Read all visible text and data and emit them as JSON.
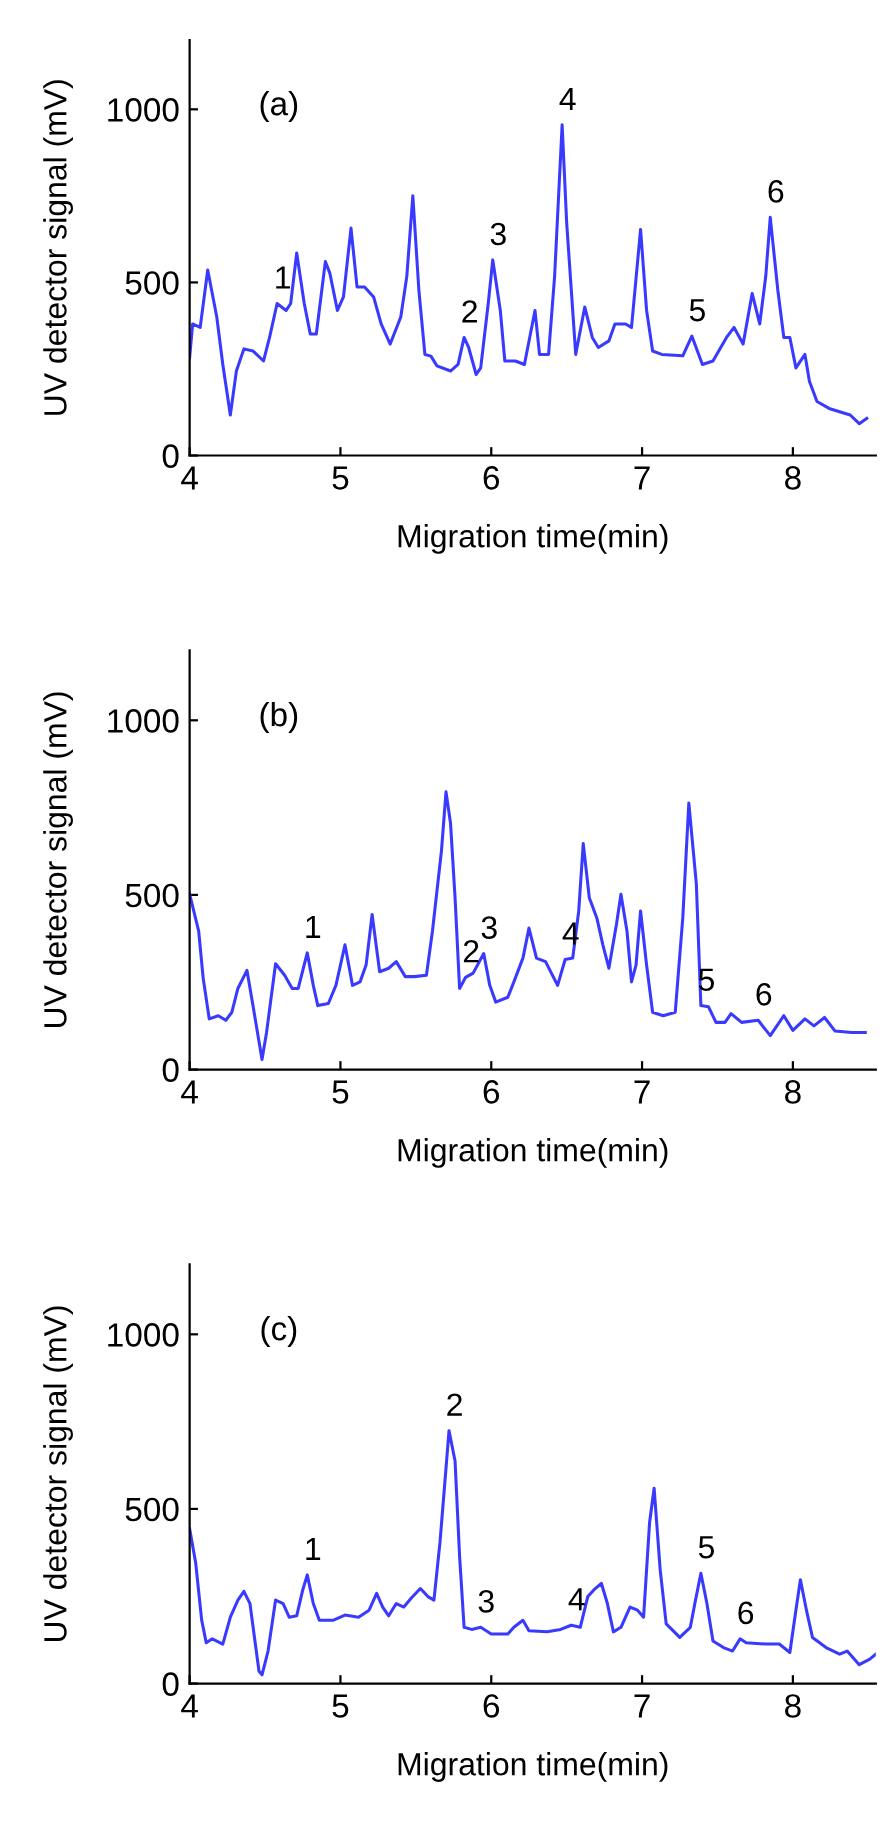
{
  "chart_data": [
    {
      "type": "line",
      "xlabel": "Migration time(min)",
      "ylabel": "UV detector signal (mV)",
      "xlim": [
        4,
        8.55
      ],
      "ylim": [
        0,
        1200
      ],
      "xticks": [
        4,
        5,
        6,
        7,
        8
      ],
      "yticks": [
        0,
        500,
        1000
      ],
      "grid": false,
      "legend": false,
      "marker": "none",
      "line_style": "solid",
      "series": [
        {
          "color": "#3a3aff",
          "x": [
            4.0,
            4.02,
            4.07,
            4.12,
            4.18,
            4.22,
            4.27,
            4.31,
            4.36,
            4.42,
            4.49,
            4.53,
            4.58,
            4.64,
            4.67,
            4.71,
            4.76,
            4.8,
            4.84,
            4.9,
            4.93,
            4.98,
            5.02,
            5.07,
            5.11,
            5.16,
            5.22,
            5.27,
            5.33,
            5.4,
            5.44,
            5.48,
            5.52,
            5.56,
            5.6,
            5.64,
            5.73,
            5.78,
            5.82,
            5.85,
            5.9,
            5.93,
            5.98,
            6.01,
            6.06,
            6.09,
            6.16,
            6.22,
            6.29,
            6.32,
            6.38,
            6.42,
            6.47,
            6.5,
            6.56,
            6.62,
            6.67,
            6.71,
            6.78,
            6.82,
            6.89,
            6.93,
            6.99,
            7.03,
            7.07,
            7.13,
            7.27,
            7.33,
            7.4,
            7.47,
            7.56,
            7.61,
            7.67,
            7.73,
            7.78,
            7.82,
            7.85,
            7.9,
            7.94,
            7.98,
            8.02,
            8.08,
            8.11,
            8.16,
            8.24,
            8.38,
            8.44,
            8.49
          ],
          "values": [
            283,
            380,
            370,
            536,
            400,
            263,
            117,
            244,
            308,
            302,
            273,
            341,
            439,
            419,
            439,
            585,
            439,
            351,
            351,
            560,
            526,
            419,
            458,
            657,
            487,
            487,
            458,
            380,
            322,
            400,
            517,
            750,
            478,
            292,
            287,
            259,
            244,
            263,
            341,
            312,
            234,
            253,
            439,
            565,
            419,
            273,
            273,
            263,
            419,
            292,
            292,
            517,
            955,
            673,
            292,
            429,
            341,
            312,
            331,
            380,
            380,
            370,
            653,
            419,
            302,
            292,
            288,
            345,
            263,
            273,
            341,
            370,
            322,
            468,
            380,
            517,
            688,
            478,
            341,
            341,
            253,
            292,
            214,
            156,
            136,
            117,
            92,
            107
          ]
        }
      ],
      "annotations": [
        "(a)",
        {
          "text": "1",
          "x": 4.58,
          "y": 439
        },
        {
          "text": "2",
          "x": 5.82,
          "y": 341
        },
        {
          "text": "3",
          "x": 6.01,
          "y": 565
        },
        {
          "text": "4",
          "x": 6.47,
          "y": 955
        },
        {
          "text": "5",
          "x": 7.33,
          "y": 345
        },
        {
          "text": "6",
          "x": 7.85,
          "y": 688
        }
      ]
    },
    {
      "type": "line",
      "xlabel": "Migration time(min)",
      "ylabel": "UV detector signal (mV)",
      "xlim": [
        4,
        8.55
      ],
      "ylim": [
        0,
        1200
      ],
      "xticks": [
        4,
        5,
        6,
        7,
        8
      ],
      "yticks": [
        0,
        500,
        1000
      ],
      "grid": false,
      "legend": false,
      "marker": "none",
      "line_style": "solid",
      "series": [
        {
          "color": "#3a3aff",
          "x": [
            4.0,
            4.06,
            4.09,
            4.13,
            4.19,
            4.24,
            4.28,
            4.32,
            4.38,
            4.42,
            4.48,
            4.51,
            4.57,
            4.63,
            4.68,
            4.72,
            4.78,
            4.82,
            4.85,
            4.92,
            4.97,
            5.03,
            5.08,
            5.13,
            5.17,
            5.21,
            5.26,
            5.32,
            5.37,
            5.43,
            5.49,
            5.57,
            5.61,
            5.67,
            5.7,
            5.73,
            5.76,
            5.79,
            5.83,
            5.88,
            5.95,
            5.99,
            6.03,
            6.11,
            6.15,
            6.21,
            6.25,
            6.3,
            6.36,
            6.44,
            6.49,
            6.54,
            6.58,
            6.61,
            6.65,
            6.7,
            6.74,
            6.78,
            6.83,
            6.86,
            6.9,
            6.93,
            6.96,
            6.99,
            7.03,
            7.07,
            7.14,
            7.22,
            7.27,
            7.31,
            7.36,
            7.39,
            7.44,
            7.49,
            7.55,
            7.59,
            7.66,
            7.77,
            7.85,
            7.94,
            8.0,
            8.08,
            8.14,
            8.21,
            8.28,
            8.39,
            8.48
          ],
          "values": [
            502,
            396,
            261,
            145,
            154,
            141,
            164,
            232,
            284,
            183,
            29,
            106,
            303,
            270,
            232,
            232,
            334,
            241,
            183,
            189,
            241,
            357,
            241,
            251,
            299,
            444,
            280,
            290,
            309,
            266,
            266,
            270,
            396,
            627,
            795,
            705,
            492,
            232,
            264,
            276,
            332,
            241,
            193,
            207,
            251,
            319,
            405,
            319,
            309,
            241,
            315,
            319,
            454,
            647,
            492,
            434,
            357,
            290,
            415,
            502,
            396,
            251,
            299,
            454,
            299,
            164,
            154,
            164,
            434,
            763,
            531,
            183,
            180,
            135,
            135,
            160,
            135,
            141,
            97,
            154,
            112,
            145,
            125,
            149,
            110,
            106,
            106
          ]
        }
      ],
      "annotations": [
        "(b)",
        {
          "text": "1",
          "x": 4.78,
          "y": 334
        },
        {
          "text": "2",
          "x": 5.83,
          "y": 264
        },
        {
          "text": "3",
          "x": 5.95,
          "y": 332
        },
        {
          "text": "4",
          "x": 6.49,
          "y": 315
        },
        {
          "text": "5",
          "x": 7.39,
          "y": 183
        },
        {
          "text": "6",
          "x": 7.77,
          "y": 141
        }
      ]
    },
    {
      "type": "line",
      "xlabel": "Migration time(min)",
      "ylabel": "UV detector signal (mV)",
      "xlim": [
        4,
        8.55
      ],
      "ylim": [
        0,
        1200
      ],
      "xticks": [
        4,
        5,
        6,
        7,
        8
      ],
      "yticks": [
        0,
        500,
        1000
      ],
      "grid": false,
      "legend": false,
      "marker": "none",
      "line_style": "solid",
      "series": [
        {
          "color": "#3a3aff",
          "x": [
            4.0,
            4.04,
            4.08,
            4.11,
            4.15,
            4.22,
            4.27,
            4.32,
            4.36,
            4.4,
            4.43,
            4.46,
            4.48,
            4.52,
            4.57,
            4.62,
            4.66,
            4.71,
            4.75,
            4.78,
            4.82,
            4.86,
            4.95,
            5.03,
            5.12,
            5.19,
            5.24,
            5.28,
            5.32,
            5.37,
            5.42,
            5.47,
            5.53,
            5.58,
            5.62,
            5.66,
            5.7,
            5.72,
            5.76,
            5.79,
            5.82,
            5.87,
            5.93,
            6.0,
            6.11,
            6.15,
            6.21,
            6.25,
            6.37,
            6.46,
            6.53,
            6.59,
            6.64,
            6.68,
            6.73,
            6.77,
            6.81,
            6.86,
            6.92,
            6.97,
            7.01,
            7.05,
            7.08,
            7.12,
            7.16,
            7.25,
            7.32,
            7.35,
            7.39,
            7.43,
            7.47,
            7.54,
            7.6,
            7.65,
            7.69,
            7.82,
            7.91,
            7.98,
            8.02,
            8.05,
            8.09,
            8.13,
            8.22,
            8.31,
            8.36,
            8.44,
            8.51,
            8.55
          ],
          "values": [
            443,
            346,
            181,
            117,
            128,
            113,
            190,
            239,
            264,
            229,
            132,
            35,
            25,
            93,
            239,
            229,
            190,
            194,
            268,
            311,
            229,
            181,
            181,
            196,
            190,
            210,
            258,
            219,
            194,
            229,
            219,
            245,
            272,
            249,
            239,
            404,
            617,
            724,
            637,
            365,
            161,
            155,
            161,
            142,
            142,
            161,
            181,
            151,
            148,
            155,
            167,
            161,
            249,
            268,
            287,
            229,
            148,
            161,
            219,
            210,
            190,
            462,
            559,
            326,
            171,
            132,
            161,
            229,
            316,
            229,
            122,
            103,
            93,
            128,
            117,
            113,
            113,
            89,
            210,
            297,
            210,
            132,
            103,
            84,
            93,
            54,
            70,
            84
          ]
        }
      ],
      "annotations": [
        "(c)",
        {
          "text": "1",
          "x": 4.78,
          "y": 311
        },
        {
          "text": "2",
          "x": 5.72,
          "y": 724
        },
        {
          "text": "3",
          "x": 5.93,
          "y": 161
        },
        {
          "text": "4",
          "x": 6.53,
          "y": 167
        },
        {
          "text": "5",
          "x": 7.39,
          "y": 316
        },
        {
          "text": "6",
          "x": 7.65,
          "y": 128
        }
      ]
    }
  ]
}
